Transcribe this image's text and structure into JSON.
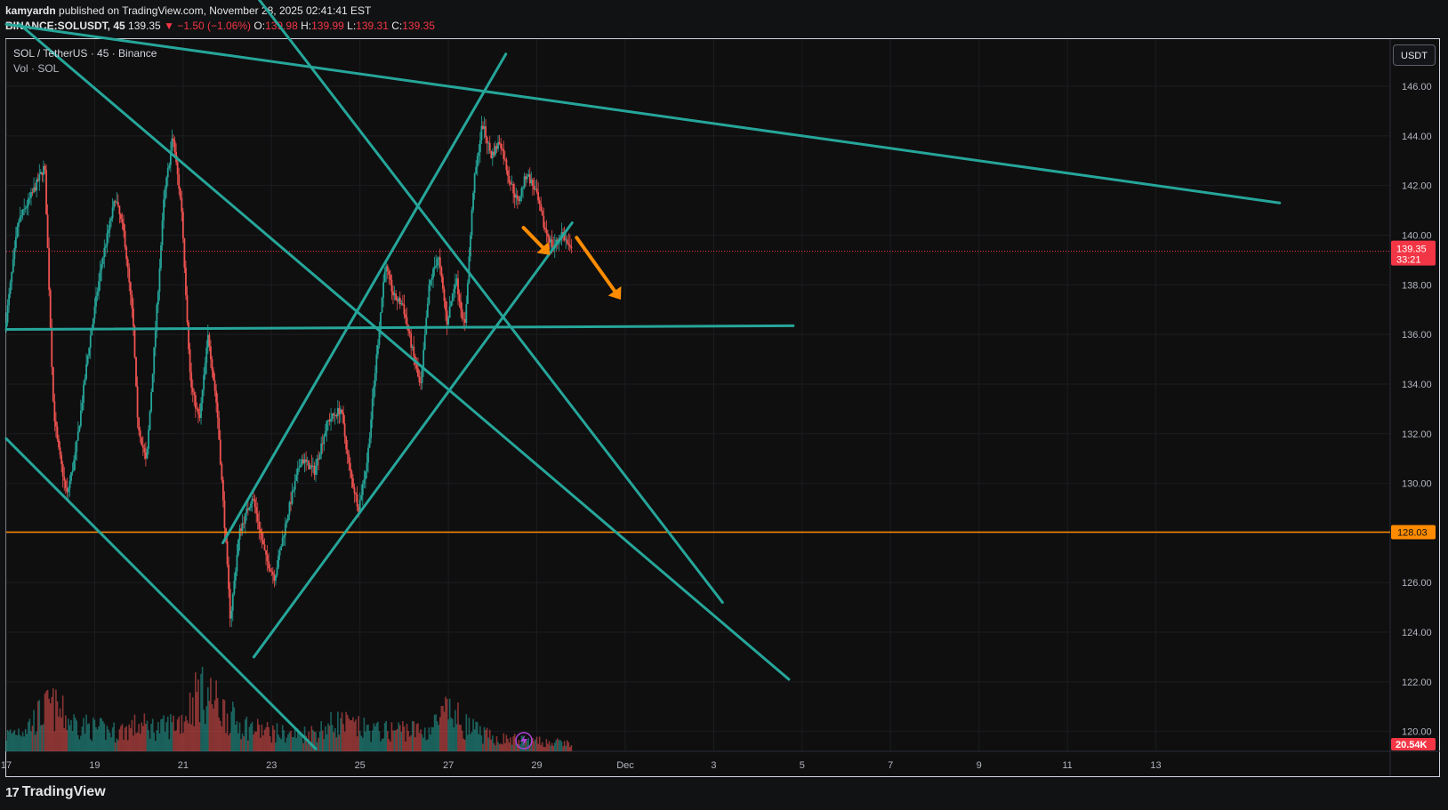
{
  "header": {
    "user": "kamyardn",
    "published": " published on TradingView.com, November 28, 2025 02:41:41 EST",
    "symbol": "BINANCE:SOLUSDT, 45",
    "last": "139.35",
    "change": "−1.50 (−1.06%)",
    "o_label": "O:",
    "o": "139.98",
    "h_label": "H:",
    "h": "139.99",
    "l_label": "L:",
    "l": "139.31",
    "c_label": "C:",
    "c": "139.35"
  },
  "legend": {
    "title": "SOL / TetherUS · 45 · Binance",
    "volume": "Vol · SOL"
  },
  "currency_button": "USDT",
  "footer": {
    "brand": "TradingView",
    "mark": "17"
  },
  "colors": {
    "trendline": "#26a69a",
    "up": "#26a69a",
    "down": "#ef5350",
    "orange": "#ff8c00",
    "price_badge": "#f23645"
  },
  "chart_data": {
    "type": "candlestick",
    "y_axis_ticks": [
      "146.00",
      "144.00",
      "142.00",
      "140.00",
      "138.00",
      "136.00",
      "134.00",
      "132.00",
      "130.00",
      "128.00",
      "126.00",
      "124.00",
      "122.00",
      "120.00"
    ],
    "y_range": [
      119.2,
      147.9
    ],
    "x_axis_ticks": [
      "17",
      "19",
      "21",
      "23",
      "25",
      "27",
      "29",
      "Dec",
      "3",
      "5",
      "7",
      "9",
      "11",
      "13"
    ],
    "x_tick_day_index": [
      17,
      19,
      21,
      23,
      25,
      27,
      29,
      31,
      33,
      35,
      37,
      39,
      41,
      43
    ],
    "x_range_days": [
      17.0,
      48.3
    ],
    "current_price": {
      "value": "139.35",
      "countdown": "33:21"
    },
    "horizontal_level": {
      "value": "128.03"
    },
    "volume_badge": "20.54K",
    "price_path": [
      [
        17.0,
        136.2
      ],
      [
        17.3,
        140.5
      ],
      [
        17.6,
        141.6
      ],
      [
        17.9,
        142.8
      ],
      [
        18.1,
        133.0
      ],
      [
        18.2,
        131.5
      ],
      [
        18.4,
        129.5
      ],
      [
        18.6,
        131.2
      ],
      [
        18.9,
        135.5
      ],
      [
        19.2,
        139.0
      ],
      [
        19.5,
        141.5
      ],
      [
        19.7,
        140.0
      ],
      [
        19.9,
        136.5
      ],
      [
        20.0,
        132.5
      ],
      [
        20.2,
        130.8
      ],
      [
        20.4,
        136.0
      ],
      [
        20.6,
        141.5
      ],
      [
        20.8,
        144.0
      ],
      [
        21.0,
        141.0
      ],
      [
        21.2,
        134.0
      ],
      [
        21.4,
        132.5
      ],
      [
        21.6,
        136.0
      ],
      [
        21.8,
        133.0
      ],
      [
        22.0,
        127.5
      ],
      [
        22.1,
        124.5
      ],
      [
        22.3,
        128.0
      ],
      [
        22.6,
        129.5
      ],
      [
        22.9,
        127.0
      ],
      [
        23.1,
        126.2
      ],
      [
        23.4,
        128.8
      ],
      [
        23.7,
        131.0
      ],
      [
        24.0,
        130.5
      ],
      [
        24.3,
        132.5
      ],
      [
        24.6,
        133.0
      ],
      [
        24.8,
        130.5
      ],
      [
        25.0,
        129.0
      ],
      [
        25.2,
        131.0
      ],
      [
        25.4,
        135.0
      ],
      [
        25.6,
        138.8
      ],
      [
        25.8,
        137.5
      ],
      [
        26.0,
        137.2
      ],
      [
        26.2,
        135.5
      ],
      [
        26.4,
        133.8
      ],
      [
        26.6,
        138.0
      ],
      [
        26.8,
        139.2
      ],
      [
        27.0,
        136.5
      ],
      [
        27.2,
        138.3
      ],
      [
        27.4,
        136.2
      ],
      [
        27.6,
        142.0
      ],
      [
        27.8,
        144.5
      ],
      [
        28.0,
        143.2
      ],
      [
        28.2,
        143.8
      ],
      [
        28.4,
        142.3
      ],
      [
        28.6,
        141.3
      ],
      [
        28.8,
        142.5
      ],
      [
        29.0,
        141.8
      ],
      [
        29.2,
        140.3
      ],
      [
        29.4,
        139.5
      ],
      [
        29.6,
        140.1
      ],
      [
        29.8,
        139.35
      ]
    ],
    "volume_profile": [
      [
        17.0,
        0.25
      ],
      [
        17.5,
        0.4
      ],
      [
        18.0,
        0.7
      ],
      [
        18.5,
        0.45
      ],
      [
        19.0,
        0.35
      ],
      [
        19.5,
        0.3
      ],
      [
        20.0,
        0.4
      ],
      [
        20.5,
        0.35
      ],
      [
        21.0,
        0.5
      ],
      [
        21.4,
        1.0
      ],
      [
        21.8,
        0.7
      ],
      [
        22.2,
        0.45
      ],
      [
        22.6,
        0.35
      ],
      [
        23.0,
        0.3
      ],
      [
        23.5,
        0.25
      ],
      [
        24.0,
        0.3
      ],
      [
        24.5,
        0.45
      ],
      [
        25.0,
        0.35
      ],
      [
        25.5,
        0.3
      ],
      [
        26.0,
        0.35
      ],
      [
        26.5,
        0.3
      ],
      [
        27.0,
        0.6
      ],
      [
        27.5,
        0.35
      ],
      [
        28.0,
        0.2
      ],
      [
        28.5,
        0.18
      ],
      [
        29.0,
        0.15
      ],
      [
        29.8,
        0.12
      ]
    ],
    "trendlines": [
      {
        "from": [
          17.0,
          148.5
        ],
        "to": [
          45.8,
          141.3
        ]
      },
      {
        "from": [
          17.0,
          136.2
        ],
        "to": [
          34.8,
          136.35
        ]
      },
      {
        "from": [
          17.3,
          148.5
        ],
        "to": [
          34.7,
          122.1
        ]
      },
      {
        "from": [
          17.0,
          131.8
        ],
        "to": [
          24.0,
          119.3
        ]
      },
      {
        "from": [
          22.6,
          123.0
        ],
        "to": [
          29.8,
          140.5
        ]
      },
      {
        "from": [
          21.9,
          127.6
        ],
        "to": [
          28.3,
          147.3
        ]
      },
      {
        "from": [
          22.5,
          150.0
        ],
        "to": [
          33.2,
          125.2
        ]
      }
    ],
    "arrows": [
      {
        "from": [
          28.7,
          140.3
        ],
        "to": [
          29.3,
          139.2
        ]
      },
      {
        "from": [
          29.9,
          139.9
        ],
        "to": [
          30.9,
          137.4
        ]
      }
    ]
  }
}
